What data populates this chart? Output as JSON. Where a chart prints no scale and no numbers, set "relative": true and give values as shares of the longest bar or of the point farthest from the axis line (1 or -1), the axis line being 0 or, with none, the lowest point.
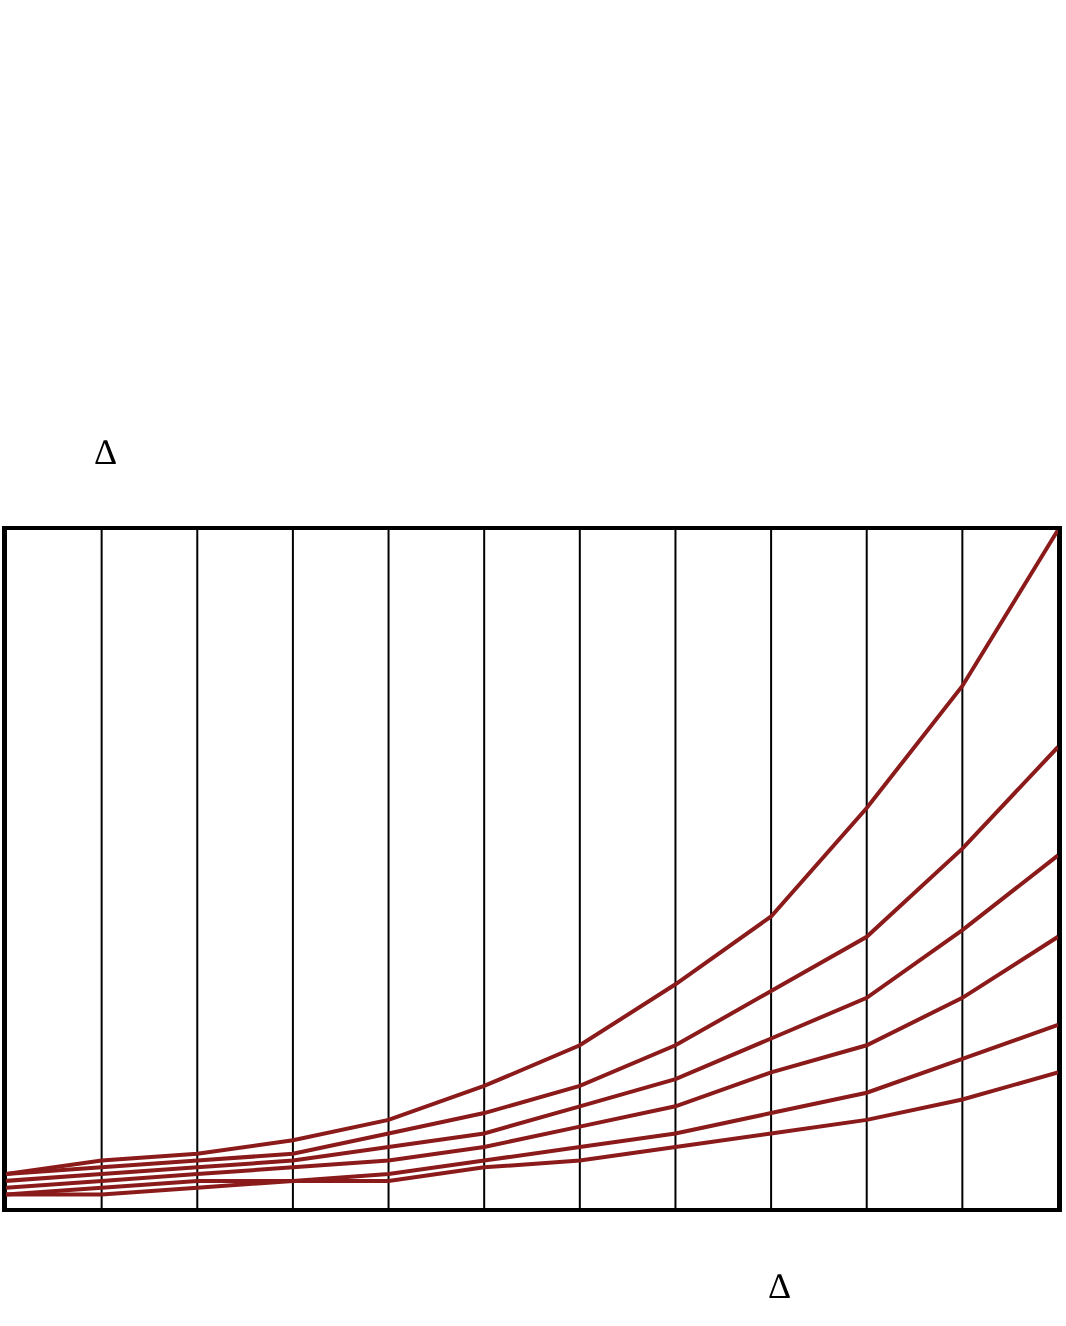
{
  "chart_data": {
    "type": "line",
    "relative": true,
    "xlabel": "Δ",
    "ylabel": "Δ",
    "grid": "x",
    "line_style": "solid",
    "marker": "none",
    "categories": [
      null,
      null,
      null,
      null,
      null,
      null,
      null,
      null,
      null,
      null,
      null,
      null
    ],
    "series": [
      {
        "color": "#8b1a1a",
        "values": [
          0.05,
          0.07,
          0.08,
          0.1,
          0.13,
          0.18,
          0.24,
          0.33,
          0.43,
          0.59,
          0.77,
          1.0
        ]
      },
      {
        "color": "#8b1a1a",
        "values": [
          0.05,
          0.06,
          0.07,
          0.08,
          0.11,
          0.14,
          0.18,
          0.24,
          0.32,
          0.4,
          0.53,
          0.68
        ]
      },
      {
        "color": "#8b1a1a",
        "values": [
          0.04,
          0.05,
          0.06,
          0.07,
          0.09,
          0.11,
          0.15,
          0.19,
          0.25,
          0.31,
          0.41,
          0.52
        ]
      },
      {
        "color": "#8b1a1a",
        "values": [
          0.03,
          0.04,
          0.05,
          0.06,
          0.07,
          0.09,
          0.12,
          0.15,
          0.2,
          0.24,
          0.31,
          0.4
        ]
      },
      {
        "color": "#8b1a1a",
        "values": [
          0.02,
          0.03,
          0.04,
          0.04,
          0.05,
          0.07,
          0.09,
          0.11,
          0.14,
          0.17,
          0.22,
          0.27
        ]
      },
      {
        "color": "#8b1a1a",
        "values": [
          0.02,
          0.02,
          0.03,
          0.04,
          0.04,
          0.06,
          0.07,
          0.09,
          0.11,
          0.13,
          0.16,
          0.2
        ]
      }
    ]
  }
}
